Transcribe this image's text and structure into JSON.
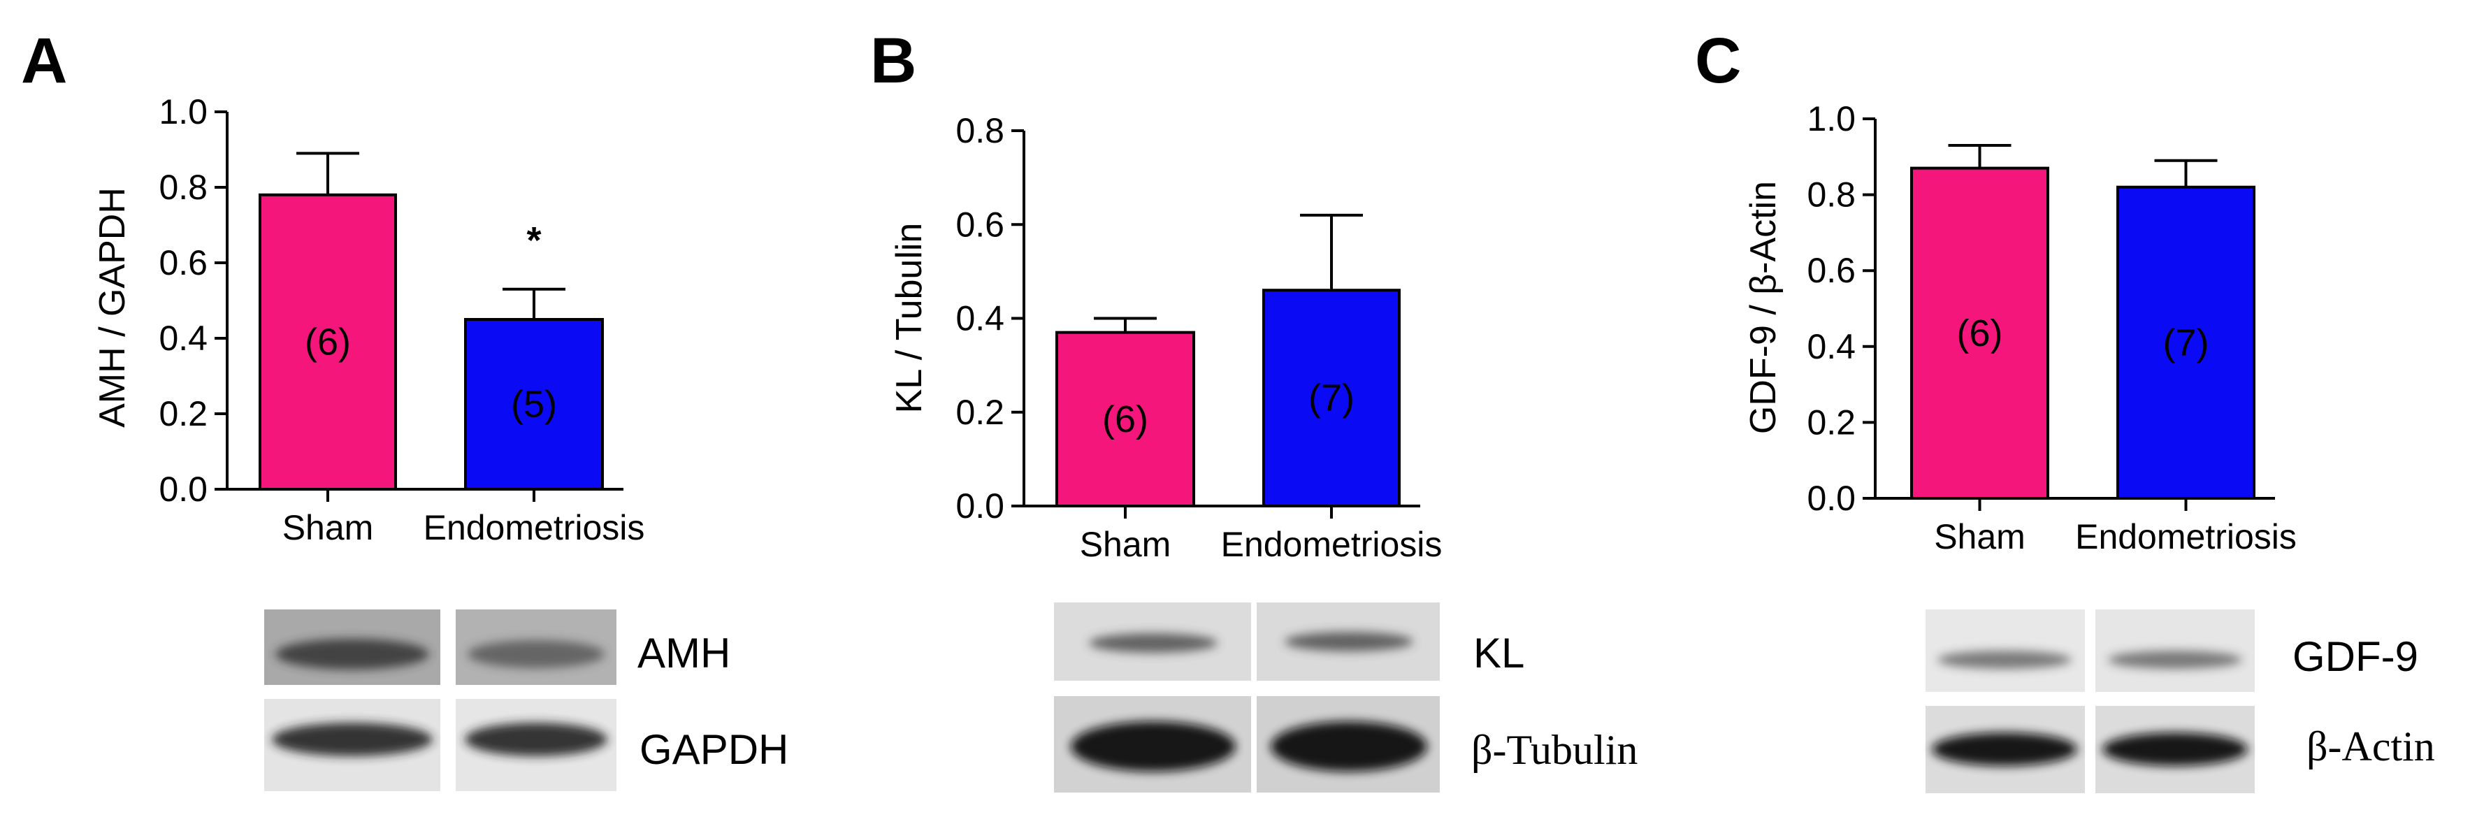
{
  "colors": {
    "sham": "#f5167c",
    "endometriosis": "#0a0af5",
    "axis": "#000000"
  },
  "panels": [
    {
      "letter": "A",
      "ylabel": "AMH / GAPDH",
      "blot_labels": [
        "AMH",
        "GAPDH"
      ],
      "chart_data": {
        "type": "bar",
        "categories": [
          "Sham",
          "Endometriosis"
        ],
        "values": [
          0.78,
          0.45
        ],
        "errors": [
          0.11,
          0.08
        ],
        "n_labels": [
          "(6)",
          "(5)"
        ],
        "annotations": [
          "",
          "*"
        ],
        "ylabel": "AMH / GAPDH",
        "ylim": [
          0,
          1.0
        ],
        "yticks": [
          "0.0",
          "0.2",
          "0.4",
          "0.6",
          "0.8",
          "1.0"
        ]
      }
    },
    {
      "letter": "B",
      "ylabel": "KL / Tubulin",
      "blot_labels": [
        "KL",
        "β-Tubulin"
      ],
      "chart_data": {
        "type": "bar",
        "categories": [
          "Sham",
          "Endometriosis"
        ],
        "values": [
          0.37,
          0.46
        ],
        "errors": [
          0.03,
          0.16
        ],
        "n_labels": [
          "(6)",
          "(7)"
        ],
        "annotations": [
          "",
          ""
        ],
        "ylabel": "KL / Tubulin",
        "ylim": [
          0,
          0.8
        ],
        "yticks": [
          "0.0",
          "0.2",
          "0.4",
          "0.6",
          "0.8"
        ]
      }
    },
    {
      "letter": "C",
      "ylabel": "GDF-9 / β-Actin",
      "blot_labels": [
        "GDF-9",
        "β-Actin"
      ],
      "chart_data": {
        "type": "bar",
        "categories": [
          "Sham",
          "Endometriosis"
        ],
        "values": [
          0.87,
          0.82
        ],
        "errors": [
          0.06,
          0.07
        ],
        "n_labels": [
          "(6)",
          "(7)"
        ],
        "annotations": [
          "",
          ""
        ],
        "ylabel": "GDF-9 / β-Actin",
        "ylim": [
          0,
          1.0
        ],
        "yticks": [
          "0.0",
          "0.2",
          "0.4",
          "0.6",
          "0.8",
          "1.0"
        ]
      }
    }
  ]
}
